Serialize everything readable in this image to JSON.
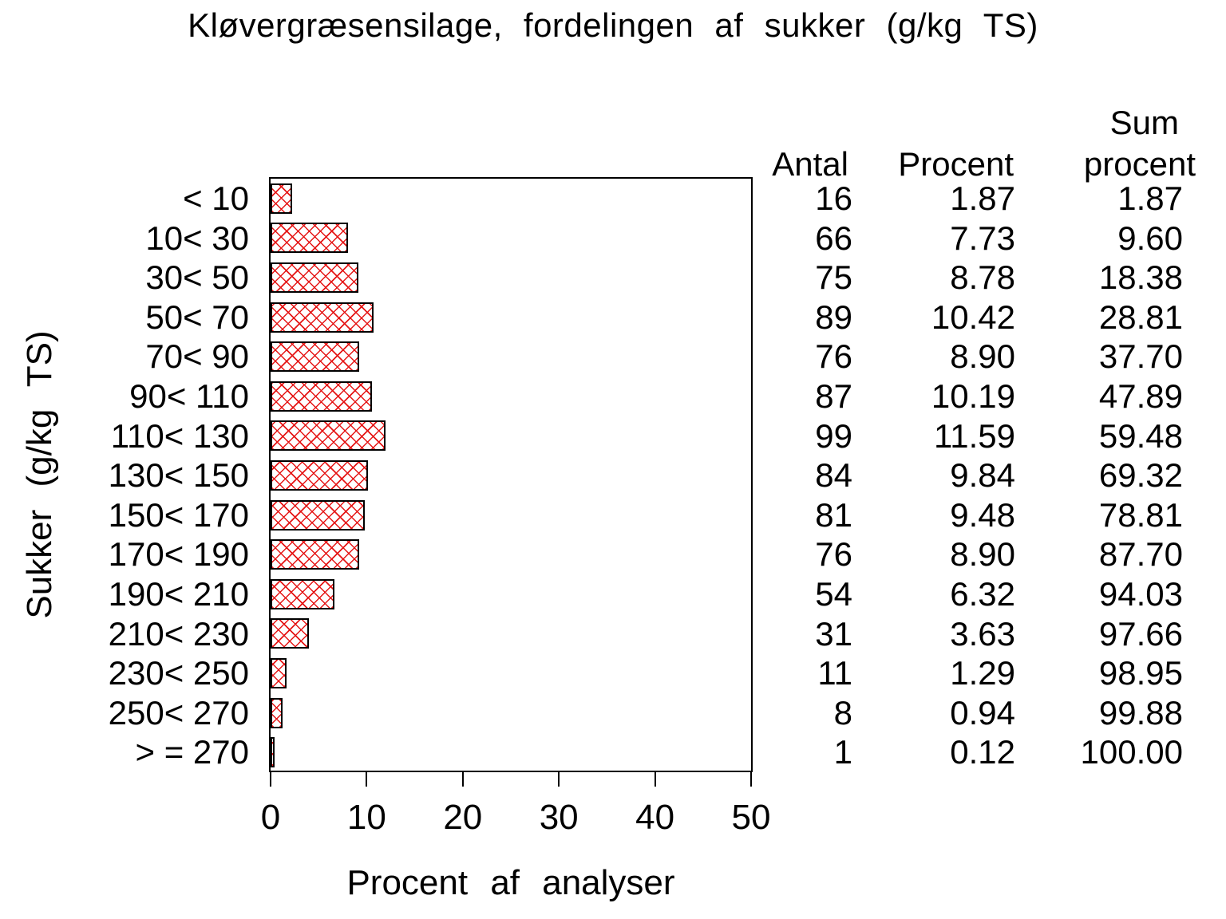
{
  "title": "Kløvergræsensilage, fordelingen af sukker (g/kg TS)",
  "axes": {
    "x_label": "Procent af analyser",
    "y_label": "Sukker (g/kg TS)"
  },
  "table_headers": {
    "antal": "Antal",
    "procent": "Procent",
    "sum_line1": "Sum",
    "sum_line2": "procent"
  },
  "chart_data": {
    "type": "bar",
    "orientation": "horizontal",
    "title": "Kløvergræsensilage, fordelingen af sukker (g/kg TS)",
    "xlabel": "Procent af analyser",
    "ylabel": "Sukker (g/kg TS)",
    "xlim": [
      0,
      50
    ],
    "x_ticks": [
      0,
      10,
      20,
      30,
      40,
      50
    ],
    "grid": false,
    "legend": false,
    "bar_value_series": "Procent",
    "categories": [
      "< 10",
      "10< 30",
      "30< 50",
      "50< 70",
      "70< 90",
      "90< 110",
      "110< 130",
      "130< 150",
      "150< 170",
      "170< 190",
      "190< 210",
      "210< 230",
      "230< 250",
      "250< 270",
      "> = 270"
    ],
    "series": [
      {
        "name": "Antal",
        "values": [
          16,
          66,
          75,
          89,
          76,
          87,
          99,
          84,
          81,
          76,
          54,
          31,
          11,
          8,
          1
        ]
      },
      {
        "name": "Procent",
        "values": [
          1.87,
          7.73,
          8.78,
          10.42,
          8.9,
          10.19,
          11.59,
          9.84,
          9.48,
          8.9,
          6.32,
          3.63,
          1.29,
          0.94,
          0.12
        ]
      },
      {
        "name": "Sum procent",
        "values": [
          1.87,
          9.6,
          18.38,
          28.81,
          37.7,
          47.89,
          59.48,
          69.32,
          78.81,
          87.7,
          94.03,
          97.66,
          98.95,
          99.88,
          100.0
        ]
      }
    ]
  },
  "colors": {
    "background": "#ffffff",
    "text": "#000000",
    "frame": "#000000",
    "bar_border": "#000000",
    "bar_hatch_red": "#e51515"
  }
}
